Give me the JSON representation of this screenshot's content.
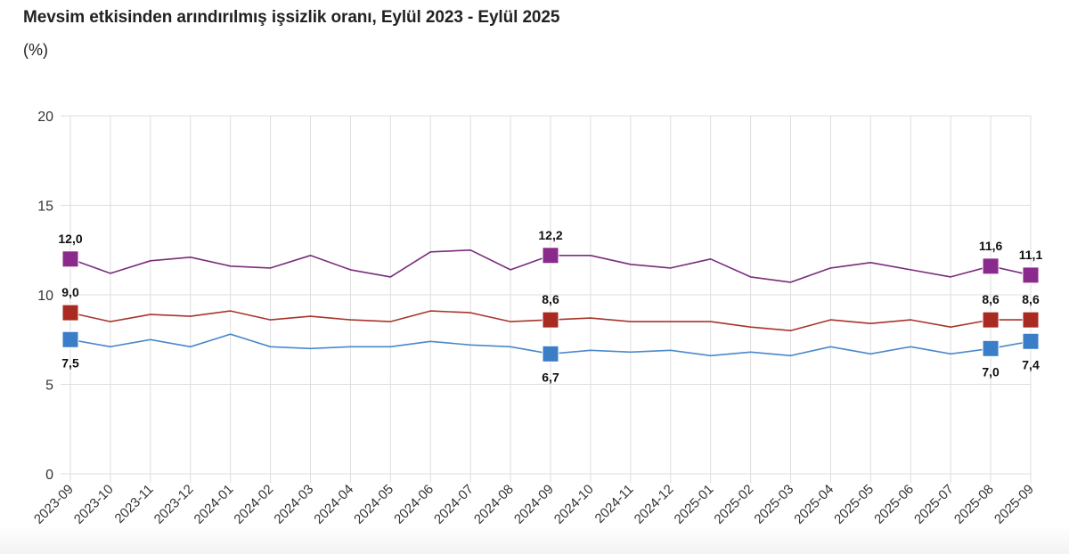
{
  "header": {
    "title": "Mevsim etkisinden arındırılmış işsizlik oranı, Eylül 2023 - Eylül 2025",
    "unit": "(%)"
  },
  "chart_data": {
    "type": "line",
    "title": "Mevsim etkisinden arındırılmış işsizlik oranı, Eylül 2023 - Eylül 2025",
    "subtitle": "(%)",
    "xlabel": "",
    "ylabel": "(%)",
    "ylim": [
      0,
      20
    ],
    "yticks": [
      0,
      5,
      10,
      15,
      20
    ],
    "grid": true,
    "legend": "none",
    "x": [
      "2023-09",
      "2023-10",
      "2023-11",
      "2023-12",
      "2024-01",
      "2024-02",
      "2024-03",
      "2024-04",
      "2024-05",
      "2024-06",
      "2024-07",
      "2024-08",
      "2024-09",
      "2024-10",
      "2024-11",
      "2024-12",
      "2025-01",
      "2025-02",
      "2025-03",
      "2025-04",
      "2025-05",
      "2025-06",
      "2025-07",
      "2025-08",
      "2025-09"
    ],
    "series": [
      {
        "name": "purple-series",
        "color": "#8a2a8c",
        "line_color": "#7a2c7d",
        "values": [
          12.0,
          11.2,
          11.9,
          12.1,
          11.6,
          11.5,
          12.2,
          11.4,
          11.0,
          12.4,
          12.5,
          11.4,
          12.2,
          12.2,
          11.7,
          11.5,
          12.0,
          11.0,
          10.7,
          11.5,
          11.8,
          11.4,
          11.0,
          11.6,
          11.1
        ],
        "labeled_points": [
          {
            "index": 0,
            "label": "12,0",
            "position": "above"
          },
          {
            "index": 12,
            "label": "12,2",
            "position": "above"
          },
          {
            "index": 23,
            "label": "11,6",
            "position": "above"
          },
          {
            "index": 24,
            "label": "11,1",
            "position": "above"
          }
        ]
      },
      {
        "name": "red-series",
        "color": "#a82a20",
        "line_color": "#a8342b",
        "values": [
          9.0,
          8.5,
          8.9,
          8.8,
          9.1,
          8.6,
          8.8,
          8.6,
          8.5,
          9.1,
          9.0,
          8.5,
          8.6,
          8.7,
          8.5,
          8.5,
          8.5,
          8.2,
          8.0,
          8.6,
          8.4,
          8.6,
          8.2,
          8.6,
          8.6
        ],
        "labeled_points": [
          {
            "index": 0,
            "label": "9,0",
            "position": "above"
          },
          {
            "index": 12,
            "label": "8,6",
            "position": "above"
          },
          {
            "index": 23,
            "label": "8,6",
            "position": "above"
          },
          {
            "index": 24,
            "label": "8,6",
            "position": "above"
          }
        ]
      },
      {
        "name": "blue-series",
        "color": "#3b7dc6",
        "line_color": "#4a88cb",
        "values": [
          7.5,
          7.1,
          7.5,
          7.1,
          7.8,
          7.1,
          7.0,
          7.1,
          7.1,
          7.4,
          7.2,
          7.1,
          6.7,
          6.9,
          6.8,
          6.9,
          6.6,
          6.8,
          6.6,
          7.1,
          6.7,
          7.1,
          6.7,
          7.0,
          7.4
        ],
        "labeled_points": [
          {
            "index": 0,
            "label": "7,5",
            "position": "below"
          },
          {
            "index": 12,
            "label": "6,7",
            "position": "below"
          },
          {
            "index": 23,
            "label": "7,0",
            "position": "below"
          },
          {
            "index": 24,
            "label": "7,4",
            "position": "below"
          }
        ]
      }
    ]
  }
}
